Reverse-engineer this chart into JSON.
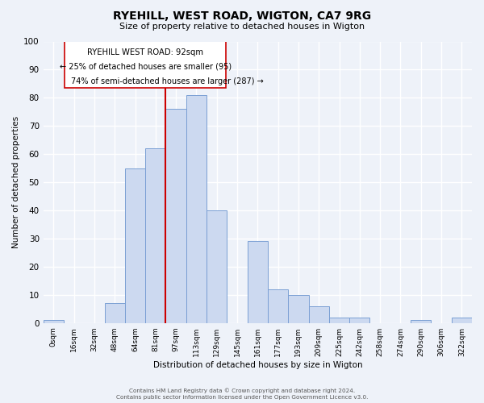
{
  "title": "RYEHILL, WEST ROAD, WIGTON, CA7 9RG",
  "subtitle": "Size of property relative to detached houses in Wigton",
  "xlabel": "Distribution of detached houses by size in Wigton",
  "ylabel": "Number of detached properties",
  "bar_color": "#ccd9f0",
  "bar_edge_color": "#7a9fd4",
  "categories": [
    "0sqm",
    "16sqm",
    "32sqm",
    "48sqm",
    "64sqm",
    "81sqm",
    "97sqm",
    "113sqm",
    "129sqm",
    "145sqm",
    "161sqm",
    "177sqm",
    "193sqm",
    "209sqm",
    "225sqm",
    "242sqm",
    "258sqm",
    "274sqm",
    "290sqm",
    "306sqm",
    "322sqm"
  ],
  "values": [
    1,
    0,
    0,
    7,
    55,
    62,
    76,
    81,
    40,
    0,
    29,
    12,
    10,
    6,
    2,
    2,
    0,
    0,
    1,
    0,
    2
  ],
  "ylim": [
    0,
    100
  ],
  "vline_color": "#cc0000",
  "annotation_title": "RYEHILL WEST ROAD: 92sqm",
  "annotation_line1": "← 25% of detached houses are smaller (95)",
  "annotation_line2": "74% of semi-detached houses are larger (287) →",
  "footer1": "Contains HM Land Registry data © Crown copyright and database right 2024.",
  "footer2": "Contains public sector information licensed under the Open Government Licence v3.0.",
  "background_color": "#eef2f9",
  "grid_color": "#ffffff"
}
